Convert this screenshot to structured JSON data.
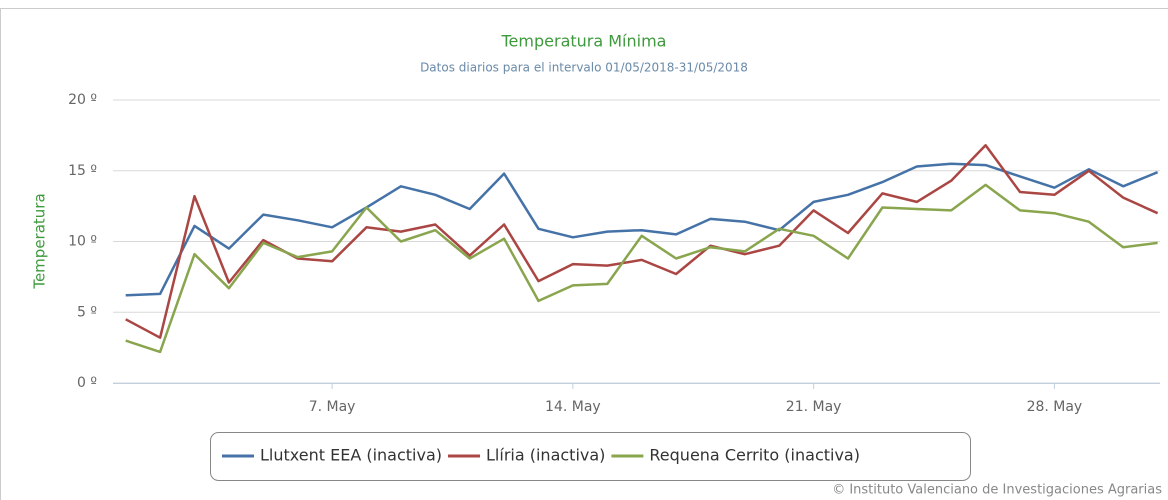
{
  "chart_data": {
    "type": "line",
    "title": "Temperatura Mínima",
    "subtitle": "Datos diarios para el intervalo 01/05/2018-31/05/2018",
    "y_label": "Temperatura",
    "credits": "© Instituto Valenciano de Investigaciones Agrarias",
    "x": [
      1,
      2,
      3,
      4,
      5,
      6,
      7,
      8,
      9,
      10,
      11,
      12,
      13,
      14,
      15,
      16,
      17,
      18,
      19,
      20,
      21,
      22,
      23,
      24,
      25,
      26,
      27,
      28,
      29,
      30,
      31
    ],
    "xlim": [
      0.63,
      31.07
    ],
    "xticks": [
      {
        "value": 7,
        "label": "7. May"
      },
      {
        "value": 14,
        "label": "14. May"
      },
      {
        "value": 21,
        "label": "21. May"
      },
      {
        "value": 28,
        "label": "28. May"
      }
    ],
    "ylim": [
      0,
      20
    ],
    "yticks": [
      {
        "value": 0,
        "label": "0 º"
      },
      {
        "value": 5,
        "label": "5 º"
      },
      {
        "value": 10,
        "label": "10 º"
      },
      {
        "value": 15,
        "label": "15 º"
      },
      {
        "value": 20,
        "label": "20 º"
      }
    ],
    "grid": true,
    "legend": "bottom",
    "series": [
      {
        "name": "Llutxent EEA (inactiva)",
        "color": "#4572a7",
        "values": [
          6.2,
          6.3,
          11.1,
          9.5,
          11.9,
          11.5,
          11.0,
          12.4,
          13.9,
          13.3,
          12.3,
          14.8,
          10.9,
          10.3,
          10.7,
          10.8,
          10.5,
          11.6,
          11.4,
          10.8,
          12.8,
          13.3,
          14.2,
          15.3,
          15.5,
          15.4,
          14.6,
          13.8,
          15.1,
          13.9,
          14.9
        ]
      },
      {
        "name": "Llíria (inactiva)",
        "color": "#aa4643",
        "values": [
          4.5,
          3.2,
          13.2,
          7.1,
          10.1,
          8.8,
          8.6,
          11.0,
          10.7,
          11.2,
          9.0,
          11.2,
          7.2,
          8.4,
          8.3,
          8.7,
          7.7,
          9.7,
          9.1,
          9.7,
          12.2,
          10.6,
          13.4,
          12.8,
          14.3,
          16.8,
          13.5,
          13.3,
          15.0,
          13.1,
          12.0
        ]
      },
      {
        "name": "Requena Cerrito (inactiva)",
        "color": "#89a54e",
        "values": [
          3.0,
          2.2,
          9.1,
          6.7,
          9.9,
          8.9,
          9.3,
          12.4,
          10.0,
          10.8,
          8.8,
          10.2,
          5.8,
          6.9,
          7.0,
          10.4,
          8.8,
          9.6,
          9.3,
          10.9,
          10.4,
          8.8,
          12.4,
          12.3,
          12.2,
          14.0,
          12.2,
          12.0,
          11.4,
          9.6,
          9.9
        ]
      }
    ]
  }
}
